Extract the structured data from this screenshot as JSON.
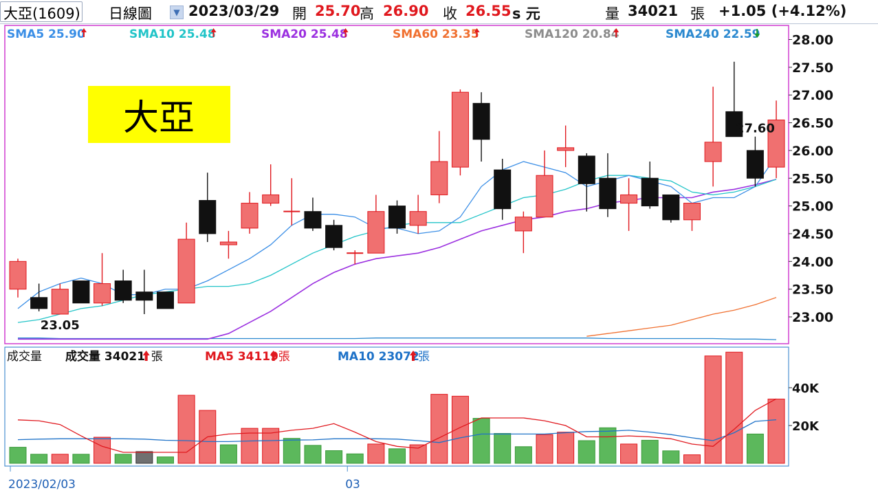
{
  "header": {
    "stock_name": "大亞(1609)",
    "period": "日線圖",
    "date": "2023/03/29",
    "open_label": "開",
    "open": "25.70",
    "high_label": "高",
    "high": "26.90",
    "close_label": "收",
    "close": "26.55",
    "unit": "s 元",
    "volume_label": "量",
    "volume": "34021",
    "volume_unit": "張",
    "change": "+1.05 (+4.12%)"
  },
  "colors": {
    "up": "#f07070",
    "up_border": "#e0181e",
    "down": "#111111",
    "vol_down": "#5cb85c",
    "sma5": "#3a8ee6",
    "sma10": "#22c4c8",
    "sma20": "#9b30e0",
    "sma60": "#f07030",
    "sma120": "#8c8c8c",
    "sma240": "#2a88cf",
    "vol_ma5": "#e0181e",
    "vol_ma10": "#1e72c8",
    "frame": "#d03cd0",
    "label_badge": "#ffff00"
  },
  "ma_legend": [
    {
      "name": "SMA5",
      "value": "25.90",
      "dir": "up",
      "color": "#3a8ee6"
    },
    {
      "name": "SMA10",
      "value": "25.48",
      "dir": "up",
      "color": "#22c4c8"
    },
    {
      "name": "SMA20",
      "value": "25.48",
      "dir": "up",
      "color": "#9b30e0"
    },
    {
      "name": "SMA60",
      "value": "23.35",
      "dir": "up",
      "color": "#f07030"
    },
    {
      "name": "SMA120",
      "value": "20.84",
      "dir": "up",
      "color": "#8c8c8c"
    },
    {
      "name": "SMA240",
      "value": "22.59",
      "dir": "down",
      "color": "#2a88cf"
    }
  ],
  "badge_text": "大亞",
  "volume_legend": {
    "title": "成交量",
    "items": [
      {
        "name": "成交量",
        "value": "34021",
        "unit": "張",
        "color": "#111111"
      },
      {
        "name": "MA5",
        "value": "34119",
        "unit": "張",
        "color": "#e0181e"
      },
      {
        "name": "MA10",
        "value": "23072",
        "unit": "張",
        "color": "#1e72c8"
      }
    ]
  },
  "chart_data": {
    "type": "candlestick",
    "ylim": [
      22.6,
      28.2
    ],
    "price_ticks": [
      23.0,
      23.5,
      24.0,
      24.5,
      25.0,
      25.5,
      26.0,
      26.5,
      27.0,
      27.5,
      28.0
    ],
    "price_tick_labels": [
      "23.00",
      "23.50",
      "24.00",
      "24.50",
      "25.00",
      "25.50",
      "26.00",
      "26.50",
      "27.00",
      "27.50",
      "28.00"
    ],
    "annotations": [
      {
        "text": "27.60",
        "index": 35
      },
      {
        "text": "23.05",
        "index": 2
      }
    ],
    "x_labels": [
      {
        "index": 0,
        "text": "2023/02/03"
      },
      {
        "index": 16,
        "text": "03"
      }
    ],
    "candles": [
      {
        "o": 23.5,
        "h": 24.05,
        "l": 23.35,
        "c": 24.0
      },
      {
        "o": 23.35,
        "h": 23.6,
        "l": 23.1,
        "c": 23.15
      },
      {
        "o": 23.05,
        "h": 23.6,
        "l": 23.05,
        "c": 23.5
      },
      {
        "o": 23.65,
        "h": 23.65,
        "l": 23.25,
        "c": 23.25
      },
      {
        "o": 23.25,
        "h": 24.15,
        "l": 23.2,
        "c": 23.6
      },
      {
        "o": 23.65,
        "h": 23.85,
        "l": 23.25,
        "c": 23.3
      },
      {
        "o": 23.45,
        "h": 23.85,
        "l": 23.05,
        "c": 23.3
      },
      {
        "o": 23.45,
        "h": 23.45,
        "l": 23.15,
        "c": 23.15
      },
      {
        "o": 23.25,
        "h": 24.7,
        "l": 23.25,
        "c": 24.4
      },
      {
        "o": 25.1,
        "h": 25.6,
        "l": 24.35,
        "c": 24.5
      },
      {
        "o": 24.3,
        "h": 24.55,
        "l": 24.05,
        "c": 24.35
      },
      {
        "o": 24.6,
        "h": 25.25,
        "l": 24.5,
        "c": 25.05
      },
      {
        "o": 25.05,
        "h": 25.75,
        "l": 25.0,
        "c": 25.2
      },
      {
        "o": 24.9,
        "h": 25.5,
        "l": 24.65,
        "c": 24.9
      },
      {
        "o": 24.9,
        "h": 25.15,
        "l": 24.55,
        "c": 24.6
      },
      {
        "o": 24.65,
        "h": 24.75,
        "l": 24.2,
        "c": 24.25
      },
      {
        "o": 24.15,
        "h": 24.2,
        "l": 23.95,
        "c": 24.15
      },
      {
        "o": 24.15,
        "h": 25.2,
        "l": 24.15,
        "c": 24.9
      },
      {
        "o": 25.0,
        "h": 25.1,
        "l": 24.5,
        "c": 24.6
      },
      {
        "o": 24.65,
        "h": 25.2,
        "l": 24.5,
        "c": 24.9
      },
      {
        "o": 25.2,
        "h": 26.35,
        "l": 25.05,
        "c": 25.8
      },
      {
        "o": 25.7,
        "h": 27.1,
        "l": 25.55,
        "c": 27.05
      },
      {
        "o": 26.85,
        "h": 27.05,
        "l": 25.8,
        "c": 26.2
      },
      {
        "o": 25.65,
        "h": 25.85,
        "l": 24.75,
        "c": 24.95
      },
      {
        "o": 24.55,
        "h": 24.9,
        "l": 24.15,
        "c": 24.8
      },
      {
        "o": 24.8,
        "h": 26.0,
        "l": 24.8,
        "c": 25.55
      },
      {
        "o": 26.0,
        "h": 26.45,
        "l": 25.7,
        "c": 26.05
      },
      {
        "o": 25.9,
        "h": 25.95,
        "l": 24.9,
        "c": 25.4
      },
      {
        "o": 25.5,
        "h": 25.95,
        "l": 24.8,
        "c": 24.95
      },
      {
        "o": 25.05,
        "h": 25.5,
        "l": 24.55,
        "c": 25.2
      },
      {
        "o": 25.5,
        "h": 25.8,
        "l": 24.95,
        "c": 25.0
      },
      {
        "o": 25.2,
        "h": 25.2,
        "l": 24.7,
        "c": 24.75
      },
      {
        "o": 24.75,
        "h": 25.05,
        "l": 24.55,
        "c": 25.05
      },
      {
        "o": 25.8,
        "h": 27.15,
        "l": 25.35,
        "c": 26.15
      },
      {
        "o": 26.7,
        "h": 27.6,
        "l": 26.25,
        "c": 26.25
      },
      {
        "o": 26.0,
        "h": 26.25,
        "l": 25.35,
        "c": 25.5
      },
      {
        "o": 25.7,
        "h": 26.9,
        "l": 25.5,
        "c": 26.55
      }
    ],
    "sma5": [
      23.15,
      23.45,
      23.6,
      23.7,
      23.6,
      23.4,
      23.4,
      23.5,
      23.5,
      23.65,
      23.85,
      24.05,
      24.3,
      24.65,
      24.85,
      24.85,
      24.8,
      24.6,
      24.6,
      24.5,
      24.55,
      24.8,
      25.35,
      25.65,
      25.8,
      25.7,
      25.6,
      25.35,
      25.45,
      25.55,
      25.45,
      25.35,
      25.05,
      25.15,
      25.15,
      25.35,
      25.9
    ],
    "sma10": [
      22.9,
      22.95,
      23.05,
      23.15,
      23.2,
      23.3,
      23.4,
      23.45,
      23.5,
      23.55,
      23.55,
      23.6,
      23.75,
      23.95,
      24.15,
      24.3,
      24.45,
      24.55,
      24.65,
      24.7,
      24.7,
      24.7,
      24.85,
      25.0,
      25.15,
      25.2,
      25.3,
      25.45,
      25.55,
      25.55,
      25.5,
      25.45,
      25.25,
      25.2,
      25.25,
      25.35,
      25.48
    ],
    "sma20": [
      22.6,
      22.6,
      22.6,
      22.6,
      22.6,
      22.6,
      22.6,
      22.6,
      22.6,
      22.6,
      22.7,
      22.9,
      23.1,
      23.35,
      23.6,
      23.8,
      23.95,
      24.05,
      24.1,
      24.15,
      24.25,
      24.4,
      24.55,
      24.65,
      24.75,
      24.8,
      24.9,
      24.95,
      25.05,
      25.1,
      25.15,
      25.15,
      25.15,
      25.25,
      25.3,
      25.38,
      25.48
    ],
    "sma60": [
      null,
      null,
      null,
      null,
      null,
      null,
      null,
      null,
      null,
      null,
      null,
      null,
      null,
      null,
      null,
      null,
      null,
      null,
      null,
      null,
      null,
      null,
      null,
      null,
      null,
      null,
      null,
      22.65,
      22.7,
      22.75,
      22.8,
      22.85,
      22.95,
      23.05,
      23.12,
      23.22,
      23.35
    ],
    "sma240": [
      22.62,
      22.62,
      22.61,
      22.61,
      22.61,
      22.61,
      22.61,
      22.61,
      22.61,
      22.61,
      22.61,
      22.61,
      22.61,
      22.61,
      22.61,
      22.61,
      22.61,
      22.62,
      22.62,
      22.62,
      22.62,
      22.62,
      22.62,
      22.62,
      22.62,
      22.62,
      22.62,
      22.62,
      22.61,
      22.61,
      22.61,
      22.61,
      22.61,
      22.61,
      22.6,
      22.6,
      22.59
    ],
    "volume_ylim": [
      0,
      60000
    ],
    "volume_ticks": [
      20000,
      40000
    ],
    "volume_tick_labels": [
      "20K",
      "40K"
    ],
    "volume": [
      {
        "v": 8500,
        "d": "down"
      },
      {
        "v": 4800,
        "d": "down"
      },
      {
        "v": 4800,
        "d": "up"
      },
      {
        "v": 4800,
        "d": "down"
      },
      {
        "v": 13800,
        "d": "up"
      },
      {
        "v": 4800,
        "d": "down"
      },
      {
        "v": 6200,
        "d": "gray"
      },
      {
        "v": 3400,
        "d": "down"
      },
      {
        "v": 36000,
        "d": "up"
      },
      {
        "v": 28000,
        "d": "up"
      },
      {
        "v": 9800,
        "d": "down"
      },
      {
        "v": 18500,
        "d": "up"
      },
      {
        "v": 18500,
        "d": "up"
      },
      {
        "v": 13200,
        "d": "down"
      },
      {
        "v": 9500,
        "d": "down"
      },
      {
        "v": 6700,
        "d": "down"
      },
      {
        "v": 5000,
        "d": "down"
      },
      {
        "v": 10200,
        "d": "up"
      },
      {
        "v": 7700,
        "d": "down"
      },
      {
        "v": 9800,
        "d": "up"
      },
      {
        "v": 36500,
        "d": "up"
      },
      {
        "v": 35500,
        "d": "up"
      },
      {
        "v": 23800,
        "d": "down"
      },
      {
        "v": 15800,
        "d": "down"
      },
      {
        "v": 8800,
        "d": "down"
      },
      {
        "v": 15200,
        "d": "up"
      },
      {
        "v": 16500,
        "d": "up"
      },
      {
        "v": 12000,
        "d": "down"
      },
      {
        "v": 18800,
        "d": "down"
      },
      {
        "v": 10200,
        "d": "up"
      },
      {
        "v": 12200,
        "d": "down"
      },
      {
        "v": 6600,
        "d": "down"
      },
      {
        "v": 4500,
        "d": "up"
      },
      {
        "v": 56800,
        "d": "up"
      },
      {
        "v": 58800,
        "d": "up"
      },
      {
        "v": 15500,
        "d": "down"
      },
      {
        "v": 34000,
        "d": "up"
      }
    ],
    "vol_ma5": [
      23000,
      22500,
      20500,
      14500,
      9000,
      5800,
      5800,
      5800,
      5800,
      14000,
      15500,
      16000,
      16000,
      17500,
      18500,
      21000,
      16500,
      11500,
      9000,
      8000,
      13500,
      19000,
      24000,
      24000,
      24000,
      22500,
      20000,
      14000,
      14000,
      14500,
      14000,
      13000,
      10200,
      9000,
      18000,
      28000,
      34119
    ],
    "vol_ma10": [
      12500,
      12800,
      13000,
      13000,
      13000,
      13000,
      12800,
      12200,
      12000,
      11500,
      11500,
      11800,
      12000,
      12300,
      12400,
      13000,
      13000,
      13000,
      12800,
      12000,
      11000,
      13500,
      15500,
      15500,
      15500,
      15500,
      16200,
      16800,
      17000,
      17500,
      16500,
      15200,
      13500,
      12000,
      16200,
      22200,
      23072
    ]
  }
}
